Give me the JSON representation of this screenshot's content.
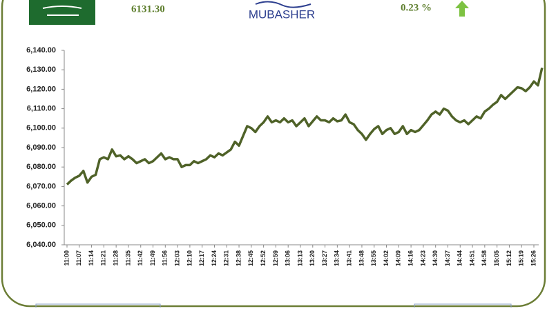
{
  "header": {
    "index": "6131.30",
    "brand": "MUBASHER",
    "change": "0.23 %"
  },
  "chart_data": {
    "type": "line",
    "color": "#4f6228",
    "categories": [
      "11:00",
      null,
      null,
      "11:07",
      null,
      null,
      "11:14",
      null,
      null,
      "11:21",
      null,
      null,
      "11:28",
      null,
      null,
      "11:35",
      null,
      null,
      "11:42",
      null,
      null,
      "11:49",
      null,
      null,
      "11:56",
      null,
      null,
      "12:03",
      null,
      null,
      "12:10",
      null,
      null,
      "12:17",
      null,
      null,
      "12:24",
      null,
      null,
      "12:31",
      null,
      null,
      "12:38",
      null,
      null,
      "12:45",
      null,
      null,
      "12:52",
      null,
      null,
      "12:59",
      null,
      null,
      "13:06",
      null,
      null,
      "13:13",
      null,
      null,
      "13:20",
      null,
      null,
      "13:27",
      null,
      null,
      "13:34",
      null,
      null,
      "13:41",
      null,
      null,
      "13:48",
      null,
      null,
      "13:55",
      null,
      null,
      "14:02",
      null,
      null,
      "14:09",
      null,
      null,
      "14:16",
      null,
      null,
      "14:23",
      null,
      null,
      "14:30",
      null,
      null,
      "14:37",
      null,
      null,
      "14:44",
      null,
      null,
      "14:51",
      null,
      null,
      "14:58",
      null,
      null,
      "15:05",
      null,
      null,
      "15:12",
      null,
      null,
      "15:19",
      null,
      null,
      "15:26",
      null,
      null
    ],
    "values": [
      6071,
      6073,
      6074.5,
      6075.5,
      6078,
      6072,
      6075,
      6076,
      6084,
      6085,
      6084,
      6089,
      6085.5,
      6086,
      6084,
      6085.5,
      6084,
      6082,
      6083,
      6084,
      6082,
      6083,
      6085,
      6087,
      6084,
      6085,
      6084,
      6084,
      6080,
      6081,
      6081,
      6083,
      6082,
      6083,
      6084,
      6086,
      6085,
      6087,
      6086,
      6087.5,
      6089,
      6093,
      6091,
      6096,
      6101,
      6100,
      6098,
      6101,
      6103,
      6106,
      6103,
      6104,
      6103,
      6105,
      6103,
      6104,
      6101,
      6103,
      6105,
      6101,
      6103.5,
      6106,
      6104,
      6104,
      6103,
      6105,
      6103.5,
      6104,
      6107,
      6103,
      6102,
      6099,
      6097,
      6094,
      6097,
      6099.5,
      6101,
      6097,
      6099,
      6100,
      6097,
      6098,
      6101,
      6097,
      6099,
      6098,
      6099,
      6101.5,
      6104,
      6107,
      6108.5,
      6107,
      6110,
      6109,
      6106,
      6104,
      6103,
      6104,
      6102,
      6104,
      6106,
      6105,
      6108.5,
      6110,
      6112,
      6113.5,
      6117,
      6115,
      6117,
      6119,
      6121,
      6120.5,
      6119,
      6121,
      6124,
      6122,
      6131
    ],
    "ylim": [
      6040,
      6140
    ],
    "yticks": [
      {
        "value": 6040,
        "label": "6,040.00"
      },
      {
        "value": 6050,
        "label": "6,050.00"
      },
      {
        "value": 6060,
        "label": "6,060.00"
      },
      {
        "value": 6070,
        "label": "6,070.00"
      },
      {
        "value": 6080,
        "label": "6,080.00"
      },
      {
        "value": 6090,
        "label": "6,090.00"
      },
      {
        "value": 6100,
        "label": "6,100.00"
      },
      {
        "value": 6110,
        "label": "6,110.00"
      },
      {
        "value": 6120,
        "label": "6,120.00"
      },
      {
        "value": 6130,
        "label": "6,130.00"
      },
      {
        "value": 6140,
        "label": "6,140.00"
      }
    ]
  }
}
